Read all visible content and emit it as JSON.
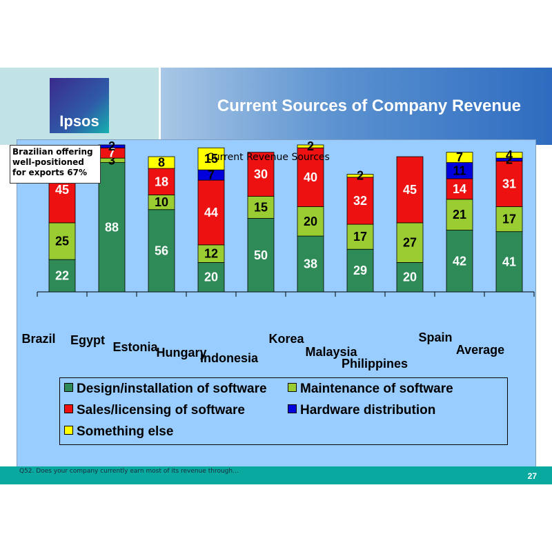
{
  "header": {
    "logo_text": "Ipsos",
    "title": "Current Sources of Company Revenue"
  },
  "note": "Brazilian offering well-positioned for exports 67%",
  "footer": {
    "question": "Q52. Does your company currently earn most of its revenue through…",
    "page_number": "27"
  },
  "colors": {
    "design": "#2e8b57",
    "maintenance": "#9acd32",
    "sales": "#ee1111",
    "hardware": "#0000dd",
    "something_else": "#ffff00"
  },
  "chart_data": {
    "type": "bar",
    "stacked": true,
    "title": "Current Revenue Sources",
    "categories": [
      "Brazil",
      "Egypt",
      "Estonia",
      "Hungary",
      "Indonesia",
      "Korea",
      "Malaysia",
      "Philippines",
      "Spain",
      "Average"
    ],
    "series": [
      {
        "name": "Design/installation of software",
        "values": [
          22,
          88,
          56,
          20,
          50,
          38,
          29,
          20,
          42,
          41
        ]
      },
      {
        "name": "Maintenance of software",
        "values": [
          25,
          3,
          10,
          12,
          15,
          20,
          17,
          27,
          21,
          17
        ]
      },
      {
        "name": "Sales/licensing of software",
        "values": [
          45,
          7,
          18,
          44,
          30,
          40,
          32,
          45,
          14,
          31
        ]
      },
      {
        "name": "Hardware distribution",
        "values": [
          0,
          2,
          0,
          7,
          0,
          0,
          0,
          0,
          11,
          2
        ]
      },
      {
        "name": "Something else",
        "values": [
          0,
          0,
          8,
          15,
          0,
          2,
          2,
          0,
          7,
          4
        ]
      }
    ],
    "ylim": [
      0,
      100
    ],
    "grid": false,
    "legend_position": "bottom"
  }
}
